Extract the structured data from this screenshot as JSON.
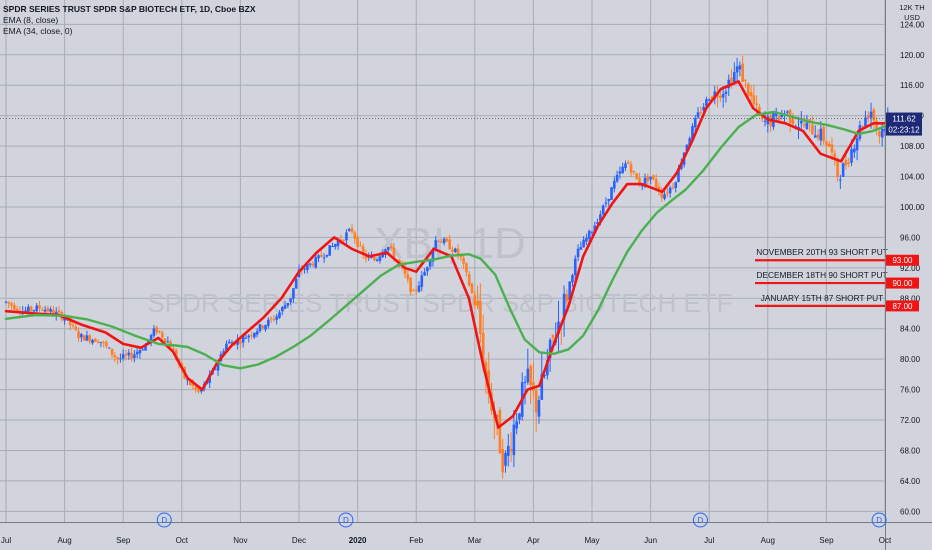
{
  "header": {
    "title": "SPDR SERIES TRUST SPDR S&P BIOTECH ETF, 1D, Cboe BZX",
    "indicator1": "EMA (8, close)",
    "indicator2": "EMA (34, close, 0)"
  },
  "watermark": {
    "symbol": "XBI, 1D",
    "name": "SPDR SERIES TRUST SPDR S&P BIOTECH ETF"
  },
  "price_axis": {
    "top_label_1": "12K TH",
    "top_label_2": "USD"
  },
  "current_price": {
    "price": "111.62",
    "countdown": "02:23:12"
  },
  "colors": {
    "background": "#d1d4dc",
    "grid": "#a8acb6",
    "up_candle": "#2962ff",
    "down_candle": "#ff7f27",
    "ema8": "#f01515",
    "ema34": "#4caf50",
    "level_line": "#f01515",
    "price_label_bg": "#1e2a78"
  },
  "annotations": [
    {
      "text": "NOVEMBER 20TH 93 SHORT PUT",
      "level": "93.00"
    },
    {
      "text": "DECEMBER 18TH 90 SHORT PUT",
      "level": "90.00"
    },
    {
      "text": "JANUARY 15TH 87 SHORT PUT",
      "level": "87.00"
    }
  ],
  "chart_data": {
    "type": "line",
    "title": "SPDR SERIES TRUST SPDR S&P BIOTECH ETF, 1D, Cboe BZX",
    "x_tick_labels": [
      "Jul",
      "Aug",
      "Sep",
      "Oct",
      "Nov",
      "Dec",
      "2020",
      "Feb",
      "Mar",
      "Apr",
      "May",
      "Jun",
      "Jul",
      "Aug",
      "Sep",
      "Oct"
    ],
    "y_tick_labels": [
      "124.00",
      "120.00",
      "116.00",
      "112.00",
      "108.00",
      "104.00",
      "100.00",
      "96.00",
      "92.00",
      "88.00",
      "84.00",
      "80.00",
      "76.00",
      "72.00",
      "68.00",
      "64.00",
      "60.00"
    ],
    "ylim": [
      58.6,
      127.2
    ],
    "grid": true,
    "dividend_markers": [
      "D",
      "D",
      "D",
      "D"
    ],
    "dividend_x_months": [
      2.7,
      5.8,
      11.85,
      14.9
    ],
    "price_anchors": [
      {
        "t": 0,
        "v": 87.5
      },
      {
        "t": 0.3,
        "v": 86.3
      },
      {
        "t": 0.6,
        "v": 86.8
      },
      {
        "t": 1.0,
        "v": 85.5
      },
      {
        "t": 1.25,
        "v": 83.0
      },
      {
        "t": 1.6,
        "v": 82.5
      },
      {
        "t": 1.9,
        "v": 80.0
      },
      {
        "t": 2.15,
        "v": 80.5
      },
      {
        "t": 2.4,
        "v": 82.0
      },
      {
        "t": 2.55,
        "v": 84.0
      },
      {
        "t": 2.8,
        "v": 82.0
      },
      {
        "t": 3.05,
        "v": 77.5
      },
      {
        "t": 3.3,
        "v": 75.5
      },
      {
        "t": 3.55,
        "v": 78.5
      },
      {
        "t": 3.75,
        "v": 82.0
      },
      {
        "t": 4.0,
        "v": 82.5
      },
      {
        "t": 4.3,
        "v": 84.0
      },
      {
        "t": 4.6,
        "v": 85.5
      },
      {
        "t": 4.85,
        "v": 88.0
      },
      {
        "t": 5.0,
        "v": 91.5
      },
      {
        "t": 5.3,
        "v": 93.0
      },
      {
        "t": 5.6,
        "v": 95.0
      },
      {
        "t": 5.9,
        "v": 97.0
      },
      {
        "t": 6.1,
        "v": 93.5
      },
      {
        "t": 6.3,
        "v": 93.0
      },
      {
        "t": 6.5,
        "v": 95.0
      },
      {
        "t": 6.75,
        "v": 92.0
      },
      {
        "t": 6.95,
        "v": 88.5
      },
      {
        "t": 7.15,
        "v": 91.5
      },
      {
        "t": 7.35,
        "v": 96.0
      },
      {
        "t": 7.55,
        "v": 95.0
      },
      {
        "t": 7.75,
        "v": 93.5
      },
      {
        "t": 7.9,
        "v": 90.0
      },
      {
        "t": 8.05,
        "v": 86.0
      },
      {
        "t": 8.2,
        "v": 77.0
      },
      {
        "t": 8.35,
        "v": 72.0
      },
      {
        "t": 8.5,
        "v": 66.0
      },
      {
        "t": 8.6,
        "v": 69.0
      },
      {
        "t": 8.75,
        "v": 74.0
      },
      {
        "t": 8.9,
        "v": 77.0
      },
      {
        "t": 9.05,
        "v": 74.0
      },
      {
        "t": 9.2,
        "v": 78.0
      },
      {
        "t": 9.35,
        "v": 83.0
      },
      {
        "t": 9.55,
        "v": 88.0
      },
      {
        "t": 9.75,
        "v": 94.0
      },
      {
        "t": 10.0,
        "v": 97.0
      },
      {
        "t": 10.2,
        "v": 100.0
      },
      {
        "t": 10.4,
        "v": 103.5
      },
      {
        "t": 10.6,
        "v": 106.0
      },
      {
        "t": 10.8,
        "v": 103.0
      },
      {
        "t": 11.0,
        "v": 104.0
      },
      {
        "t": 11.2,
        "v": 101.5
      },
      {
        "t": 11.4,
        "v": 103.0
      },
      {
        "t": 11.6,
        "v": 108.0
      },
      {
        "t": 11.8,
        "v": 112.0
      },
      {
        "t": 12.0,
        "v": 114.5
      },
      {
        "t": 12.25,
        "v": 115.5
      },
      {
        "t": 12.5,
        "v": 118.5
      },
      {
        "t": 12.7,
        "v": 114.5
      },
      {
        "t": 12.9,
        "v": 111.0
      },
      {
        "t": 13.1,
        "v": 111.5
      },
      {
        "t": 13.3,
        "v": 112.5
      },
      {
        "t": 13.5,
        "v": 111.0
      },
      {
        "t": 13.7,
        "v": 110.5
      },
      {
        "t": 13.9,
        "v": 109.5
      },
      {
        "t": 14.05,
        "v": 108.0
      },
      {
        "t": 14.2,
        "v": 104.0
      },
      {
        "t": 14.35,
        "v": 106.0
      },
      {
        "t": 14.55,
        "v": 110.0
      },
      {
        "t": 14.75,
        "v": 113.0
      },
      {
        "t": 14.9,
        "v": 109.5
      },
      {
        "t": 15.05,
        "v": 111.6
      }
    ],
    "series": [
      {
        "name": "EMA (8, close)",
        "color": "#f01515",
        "values": [
          86.3,
          86.0,
          85.8,
          84.5,
          83.5,
          82.0,
          81.5,
          82.8,
          81.0,
          77.5,
          76.0,
          79.5,
          81.8,
          83.5,
          85.5,
          88.0,
          91.5,
          94.0,
          96.0,
          94.5,
          93.5,
          94.0,
          92.0,
          91.5,
          94.5,
          93.5,
          88.0,
          79.0,
          71.0,
          72.5,
          76.0,
          76.5,
          82.0,
          87.0,
          93.5,
          97.5,
          100.5,
          103.0,
          103.0,
          102.0,
          104.5,
          108.5,
          113.0,
          115.5,
          116.5,
          113.0,
          111.5,
          111.0,
          110.0,
          107.0,
          106.0,
          110.0,
          111.0,
          111.0
        ],
        "x_months": [
          0,
          0.5,
          0.9,
          1.3,
          1.7,
          2.0,
          2.3,
          2.6,
          2.85,
          3.1,
          3.35,
          3.6,
          3.85,
          4.1,
          4.4,
          4.7,
          5.0,
          5.3,
          5.6,
          5.9,
          6.2,
          6.5,
          6.8,
          7.0,
          7.3,
          7.6,
          7.9,
          8.15,
          8.4,
          8.65,
          8.9,
          9.1,
          9.35,
          9.6,
          9.85,
          10.1,
          10.35,
          10.6,
          10.85,
          11.2,
          11.45,
          11.7,
          11.95,
          12.2,
          12.5,
          12.75,
          13.0,
          13.3,
          13.6,
          13.9,
          14.25,
          14.55,
          14.8,
          15.05
        ]
      },
      {
        "name": "EMA (34, close, 0)",
        "color": "#4caf50",
        "values": [
          85.3,
          85.8,
          85.7,
          85.2,
          84.3,
          83.1,
          82.0,
          81.8,
          81.6,
          80.6,
          79.2,
          78.8,
          79.3,
          80.3,
          81.6,
          83.1,
          85.0,
          87.0,
          89.0,
          91.0,
          92.4,
          92.8,
          93.1,
          93.6,
          93.8,
          93.2,
          91.1,
          86.6,
          82.6,
          80.9,
          80.7,
          81.3,
          83.1,
          86.4,
          90.4,
          94.1,
          96.9,
          99.2,
          100.8,
          102.3,
          104.8,
          107.8,
          110.5,
          112.1,
          112.5,
          111.9,
          111.2,
          110.8,
          110.2,
          109.6,
          110.0,
          110.6,
          110.9
        ],
        "x_months": [
          0,
          0.5,
          1.0,
          1.4,
          1.8,
          2.2,
          2.6,
          2.9,
          3.1,
          3.4,
          3.7,
          4.0,
          4.3,
          4.6,
          4.9,
          5.2,
          5.5,
          5.8,
          6.1,
          6.4,
          6.7,
          7.0,
          7.3,
          7.6,
          7.9,
          8.1,
          8.35,
          8.6,
          8.85,
          9.1,
          9.35,
          9.6,
          9.85,
          10.1,
          10.35,
          10.6,
          10.85,
          11.1,
          11.35,
          11.6,
          11.9,
          12.2,
          12.5,
          12.8,
          13.1,
          13.4,
          13.7,
          14.0,
          14.3,
          14.55,
          14.8,
          15.0,
          15.1
        ]
      }
    ]
  }
}
